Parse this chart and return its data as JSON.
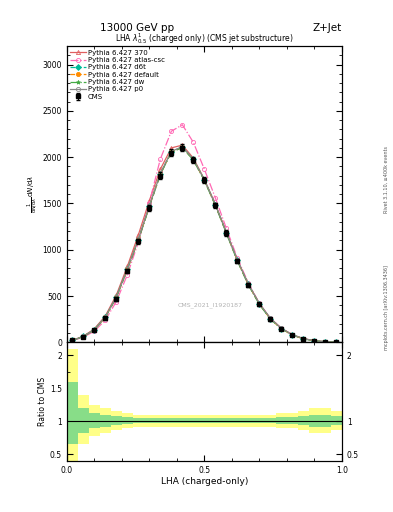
{
  "title_top": "13000 GeV pp",
  "title_right": "Z+Jet",
  "watermark": "CMS_2021_I1920187",
  "right_label1": "Rivet 3.1.10, ≥400k events",
  "right_label2": "mcplots.cern.ch [arXiv:1306.3436]",
  "xlabel": "LHA (charged-only)",
  "xlim": [
    0,
    1
  ],
  "ylim_main": [
    0,
    3200
  ],
  "ylim_ratio": [
    0.4,
    2.2
  ],
  "cms_data": {
    "x": [
      0.02,
      0.06,
      0.1,
      0.14,
      0.18,
      0.22,
      0.26,
      0.3,
      0.34,
      0.38,
      0.42,
      0.46,
      0.5,
      0.54,
      0.58,
      0.62,
      0.66,
      0.7,
      0.74,
      0.78,
      0.82,
      0.86,
      0.9,
      0.94,
      0.98
    ],
    "y": [
      20,
      60,
      130,
      260,
      470,
      770,
      1090,
      1450,
      1800,
      2050,
      2100,
      1970,
      1750,
      1480,
      1180,
      880,
      620,
      410,
      250,
      145,
      78,
      37,
      16,
      6,
      1
    ],
    "yerr": [
      5,
      8,
      12,
      16,
      20,
      25,
      28,
      32,
      35,
      38,
      38,
      35,
      32,
      30,
      28,
      25,
      22,
      18,
      15,
      12,
      9,
      6,
      4,
      2,
      1
    ],
    "color": "#000000",
    "marker": "s",
    "label": "CMS"
  },
  "series": [
    {
      "label": "Pythia 6.427 370",
      "color": "#e06060",
      "linestyle": "-",
      "marker": "^",
      "fillstyle": "none",
      "x": [
        0.02,
        0.06,
        0.1,
        0.14,
        0.18,
        0.22,
        0.26,
        0.3,
        0.34,
        0.38,
        0.42,
        0.46,
        0.5,
        0.54,
        0.58,
        0.62,
        0.66,
        0.7,
        0.74,
        0.78,
        0.82,
        0.86,
        0.9,
        0.94,
        0.98
      ],
      "y": [
        22,
        65,
        145,
        285,
        510,
        820,
        1160,
        1530,
        1870,
        2100,
        2130,
        1990,
        1760,
        1490,
        1190,
        890,
        630,
        420,
        260,
        152,
        82,
        40,
        17,
        6,
        1
      ]
    },
    {
      "label": "Pythia 6.427 atlas-csc",
      "color": "#ff69b4",
      "linestyle": "-.",
      "marker": "o",
      "fillstyle": "none",
      "x": [
        0.02,
        0.06,
        0.1,
        0.14,
        0.18,
        0.22,
        0.26,
        0.3,
        0.34,
        0.38,
        0.42,
        0.46,
        0.5,
        0.54,
        0.58,
        0.62,
        0.66,
        0.7,
        0.74,
        0.78,
        0.82,
        0.86,
        0.9,
        0.94,
        0.98
      ],
      "y": [
        18,
        55,
        120,
        240,
        440,
        730,
        1080,
        1510,
        1980,
        2280,
        2350,
        2160,
        1870,
        1560,
        1230,
        910,
        640,
        420,
        260,
        152,
        82,
        40,
        17,
        6,
        1
      ]
    },
    {
      "label": "Pythia 6.427 d6t",
      "color": "#00bb99",
      "linestyle": "--",
      "marker": "D",
      "fillstyle": "full",
      "x": [
        0.02,
        0.06,
        0.1,
        0.14,
        0.18,
        0.22,
        0.26,
        0.3,
        0.34,
        0.38,
        0.42,
        0.46,
        0.5,
        0.54,
        0.58,
        0.62,
        0.66,
        0.7,
        0.74,
        0.78,
        0.82,
        0.86,
        0.9,
        0.94,
        0.98
      ],
      "y": [
        21,
        63,
        138,
        272,
        490,
        790,
        1110,
        1470,
        1820,
        2060,
        2110,
        1975,
        1755,
        1485,
        1185,
        885,
        625,
        415,
        255,
        148,
        80,
        39,
        17,
        6,
        1
      ]
    },
    {
      "label": "Pythia 6.427 default",
      "color": "#ff8c00",
      "linestyle": "--",
      "marker": "o",
      "fillstyle": "full",
      "x": [
        0.02,
        0.06,
        0.1,
        0.14,
        0.18,
        0.22,
        0.26,
        0.3,
        0.34,
        0.38,
        0.42,
        0.46,
        0.5,
        0.54,
        0.58,
        0.62,
        0.66,
        0.7,
        0.74,
        0.78,
        0.82,
        0.86,
        0.9,
        0.94,
        0.98
      ],
      "y": [
        21,
        62,
        136,
        270,
        487,
        787,
        1107,
        1467,
        1817,
        2057,
        2107,
        1972,
        1752,
        1482,
        1182,
        882,
        622,
        412,
        252,
        146,
        79,
        38,
        16,
        6,
        1
      ]
    },
    {
      "label": "Pythia 6.427 dw",
      "color": "#44aa44",
      "linestyle": "-.",
      "marker": "*",
      "fillstyle": "full",
      "x": [
        0.02,
        0.06,
        0.1,
        0.14,
        0.18,
        0.22,
        0.26,
        0.3,
        0.34,
        0.38,
        0.42,
        0.46,
        0.5,
        0.54,
        0.58,
        0.62,
        0.66,
        0.7,
        0.74,
        0.78,
        0.82,
        0.86,
        0.9,
        0.94,
        0.98
      ],
      "y": [
        20,
        61,
        134,
        268,
        485,
        784,
        1104,
        1463,
        1813,
        2053,
        2103,
        1968,
        1748,
        1478,
        1178,
        878,
        619,
        409,
        250,
        144,
        78,
        37,
        16,
        6,
        1
      ]
    },
    {
      "label": "Pythia 6.427 p0",
      "color": "#888888",
      "linestyle": "-",
      "marker": "o",
      "fillstyle": "none",
      "x": [
        0.02,
        0.06,
        0.1,
        0.14,
        0.18,
        0.22,
        0.26,
        0.3,
        0.34,
        0.38,
        0.42,
        0.46,
        0.5,
        0.54,
        0.58,
        0.62,
        0.66,
        0.7,
        0.74,
        0.78,
        0.82,
        0.86,
        0.9,
        0.94,
        0.98
      ],
      "y": [
        21,
        63,
        138,
        274,
        492,
        793,
        1113,
        1473,
        1823,
        2063,
        2113,
        1978,
        1758,
        1488,
        1188,
        888,
        628,
        418,
        258,
        150,
        81,
        40,
        17,
        6,
        1
      ]
    }
  ],
  "ratio_band_yellow": {
    "x_edges": [
      0.0,
      0.04,
      0.08,
      0.12,
      0.16,
      0.2,
      0.24,
      0.28,
      0.32,
      0.36,
      0.4,
      0.44,
      0.48,
      0.52,
      0.56,
      0.6,
      0.64,
      0.68,
      0.72,
      0.76,
      0.8,
      0.84,
      0.88,
      0.92,
      0.96,
      1.0
    ],
    "upper": [
      2.1,
      1.4,
      1.25,
      1.2,
      1.15,
      1.12,
      1.1,
      1.1,
      1.1,
      1.1,
      1.1,
      1.1,
      1.1,
      1.1,
      1.1,
      1.1,
      1.1,
      1.1,
      1.1,
      1.12,
      1.12,
      1.15,
      1.2,
      1.2,
      1.15
    ],
    "lower": [
      0.4,
      0.65,
      0.78,
      0.82,
      0.87,
      0.9,
      0.92,
      0.92,
      0.92,
      0.92,
      0.92,
      0.92,
      0.92,
      0.92,
      0.92,
      0.92,
      0.92,
      0.92,
      0.92,
      0.9,
      0.9,
      0.87,
      0.82,
      0.82,
      0.87
    ]
  },
  "ratio_band_green": {
    "x_edges": [
      0.0,
      0.04,
      0.08,
      0.12,
      0.16,
      0.2,
      0.24,
      0.28,
      0.32,
      0.36,
      0.4,
      0.44,
      0.48,
      0.52,
      0.56,
      0.6,
      0.64,
      0.68,
      0.72,
      0.76,
      0.8,
      0.84,
      0.88,
      0.92,
      0.96,
      1.0
    ],
    "upper": [
      1.6,
      1.2,
      1.12,
      1.1,
      1.08,
      1.06,
      1.05,
      1.05,
      1.05,
      1.05,
      1.05,
      1.05,
      1.05,
      1.05,
      1.05,
      1.05,
      1.05,
      1.05,
      1.05,
      1.06,
      1.06,
      1.08,
      1.1,
      1.1,
      1.08
    ],
    "lower": [
      0.65,
      0.82,
      0.9,
      0.92,
      0.94,
      0.96,
      0.97,
      0.97,
      0.97,
      0.97,
      0.97,
      0.97,
      0.97,
      0.97,
      0.97,
      0.97,
      0.97,
      0.97,
      0.97,
      0.96,
      0.96,
      0.94,
      0.92,
      0.92,
      0.94
    ]
  }
}
